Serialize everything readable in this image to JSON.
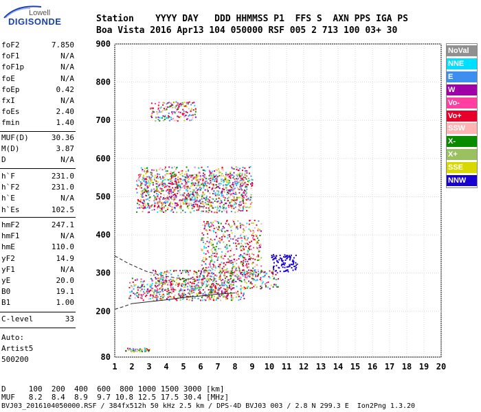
{
  "logo": {
    "top": "Lowell",
    "main": "DIGISONDE"
  },
  "header": {
    "row1": "Station    YYYY DAY   DDD HHMMSS P1  FFS S  AXN PPS IGA PS",
    "row2": "Boa Vista 2016 Apr13 104 050000 RSF 005 2 713 100 03+ 30"
  },
  "params_group1": [
    {
      "label": "foF2",
      "value": "7.850"
    },
    {
      "label": "foF1",
      "value": "N/A"
    },
    {
      "label": "foF1p",
      "value": "N/A"
    },
    {
      "label": "foE",
      "value": "N/A"
    },
    {
      "label": "foEp",
      "value": "0.42"
    },
    {
      "label": "fxI",
      "value": "N/A"
    },
    {
      "label": "foEs",
      "value": "2.40"
    },
    {
      "label": "fmin",
      "value": "1.40"
    }
  ],
  "params_group2": [
    {
      "label": "MUF(D)",
      "value": "30.36"
    },
    {
      "label": "M(D)",
      "value": "3.87"
    },
    {
      "label": "D",
      "value": "N/A"
    }
  ],
  "params_group3": [
    {
      "label": "h`F",
      "value": "231.0"
    },
    {
      "label": "h`F2",
      "value": "231.0"
    },
    {
      "label": "h`E",
      "value": "N/A"
    },
    {
      "label": "h`Es",
      "value": "102.5"
    }
  ],
  "params_group4": [
    {
      "label": "hmF2",
      "value": "247.1"
    },
    {
      "label": "hmF1",
      "value": "N/A"
    },
    {
      "label": "hmE",
      "value": "110.0"
    },
    {
      "label": "yF2",
      "value": "14.9"
    },
    {
      "label": "yF1",
      "value": "N/A"
    },
    {
      "label": "yE",
      "value": "20.0"
    },
    {
      "label": "B0",
      "value": "19.1"
    },
    {
      "label": "B1",
      "value": "1.00"
    }
  ],
  "params_group5": [
    {
      "label": "C-level",
      "value": "33"
    }
  ],
  "auto": {
    "label": "Auto:",
    "software": "Artist5",
    "version": "500200"
  },
  "legend": [
    {
      "name": "NoVal",
      "color": "#909090"
    },
    {
      "name": "NNE",
      "color": "#00dfff"
    },
    {
      "name": "E",
      "color": "#3e8ef0"
    },
    {
      "name": "W",
      "color": "#a000a8"
    },
    {
      "name": "Vo-",
      "color": "#ff40a0"
    },
    {
      "name": "Vo+",
      "color": "#e8002a"
    },
    {
      "name": "SSW",
      "color": "#ffb4b4"
    },
    {
      "name": "X-",
      "color": "#0a8a00"
    },
    {
      "name": "X+",
      "color": "#9ac060"
    },
    {
      "name": "SSE",
      "color": "#d8d800"
    },
    {
      "name": "NNW",
      "color": "#1800d0"
    }
  ],
  "footer": {
    "d_row": "D     100  200  400  600  800 1000 1500 3000 [km]",
    "muf_row": "MUF   8.2  8.4  8.9  9.7 10.8 12.5 17.5 30.4 [MHz]",
    "file_row": "BVJ03_2016104050000.RSF / 384fx512h 50 kHz 2.5 km / DPS-4D BVJ03 003 / 2.8 N 299.3 E  Ion2Png 1.3.20"
  },
  "chart_data": {
    "type": "scatter",
    "xlabel": "",
    "ylabel": "",
    "xlim": [
      1,
      20
    ],
    "ylim": [
      80,
      900
    ],
    "x_ticks": [
      1,
      2,
      3,
      4,
      5,
      6,
      7,
      8,
      9,
      10,
      11,
      12,
      13,
      14,
      15,
      16,
      17,
      18,
      19,
      20
    ],
    "y_ticks": [
      80,
      200,
      300,
      400,
      500,
      600,
      700,
      800,
      900
    ],
    "grid": true,
    "clusters": [
      {
        "series": "Vo+",
        "x": [
          1.6,
          3.0
        ],
        "y": [
          95,
          105
        ]
      },
      {
        "series": "Vo+",
        "x": [
          1.8,
          7.9
        ],
        "y": [
          235,
          290
        ]
      },
      {
        "series": "X-",
        "x": [
          2.6,
          8.5
        ],
        "y": [
          230,
          260
        ]
      },
      {
        "series": "E",
        "x": [
          3.0,
          10.5
        ],
        "y": [
          260,
          310
        ]
      },
      {
        "series": "Vo+",
        "x": [
          6.0,
          9.5
        ],
        "y": [
          290,
          440
        ]
      },
      {
        "series": "NNW",
        "x": [
          10.1,
          11.6
        ],
        "y": [
          305,
          350
        ]
      },
      {
        "series": "Vo+",
        "x": [
          2.2,
          8.7
        ],
        "y": [
          460,
          560
        ]
      },
      {
        "series": "E",
        "x": [
          2.5,
          9.0
        ],
        "y": [
          470,
          580
        ]
      },
      {
        "series": "Vo+",
        "x": [
          3.0,
          5.7
        ],
        "y": [
          700,
          750
        ]
      }
    ],
    "curves": [
      {
        "name": "profile-upper",
        "style": "dashed",
        "x": [
          1.0,
          1.8,
          2.8,
          3.8,
          4.6,
          5.2,
          5.6
        ],
        "y": [
          345,
          325,
          305,
          293,
          287,
          285,
          284
        ]
      },
      {
        "name": "profile-lower",
        "style": "dashed",
        "x": [
          1.0,
          1.5,
          2.0
        ],
        "y": [
          205,
          212,
          220
        ]
      },
      {
        "name": "trace-o",
        "style": "solid",
        "x": [
          2.0,
          3.0,
          4.0,
          5.0,
          6.0,
          7.0,
          8.0
        ],
        "y": [
          220,
          225,
          230,
          236,
          240,
          245,
          248
        ]
      }
    ]
  }
}
